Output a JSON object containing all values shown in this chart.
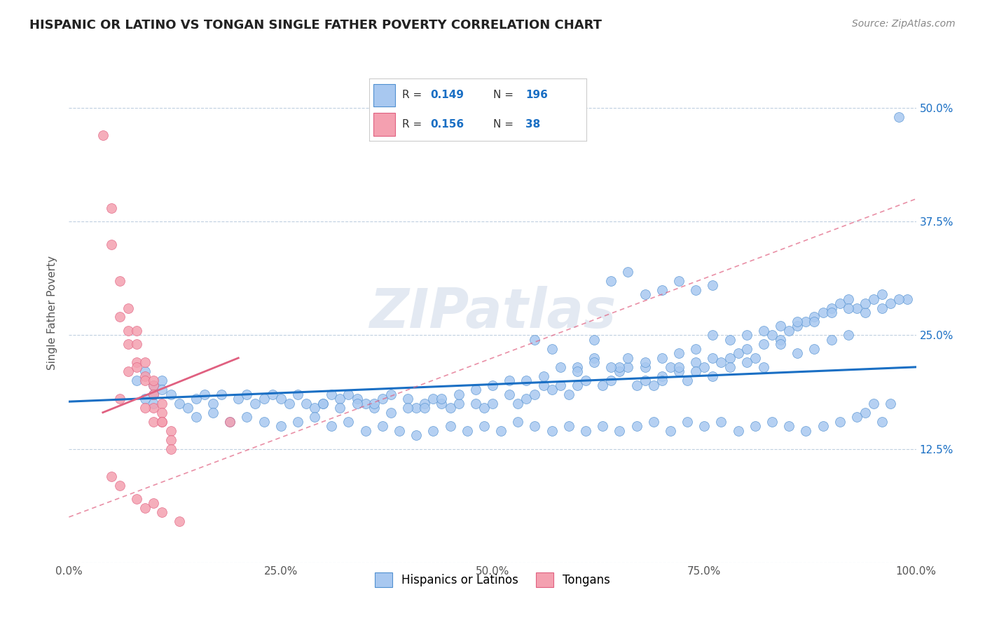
{
  "title": "HISPANIC OR LATINO VS TONGAN SINGLE FATHER POVERTY CORRELATION CHART",
  "source": "Source: ZipAtlas.com",
  "ylabel": "Single Father Poverty",
  "watermark": "ZIPatlas",
  "legend_labels": [
    "Hispanics or Latinos",
    "Tongans"
  ],
  "blue_R": 0.149,
  "blue_N": 196,
  "pink_R": 0.156,
  "pink_N": 38,
  "blue_color": "#a8c8f0",
  "pink_color": "#f4a0b0",
  "blue_edge_color": "#5090d0",
  "pink_edge_color": "#e06080",
  "trendline_color_blue": "#1a6fc4",
  "trendline_color_pink": "#e06080",
  "background_color": "#ffffff",
  "grid_color": "#c0d0e0",
  "xlim": [
    0.0,
    1.0
  ],
  "ylim": [
    0.0,
    0.55
  ],
  "xticks": [
    0.0,
    0.25,
    0.5,
    0.75,
    1.0
  ],
  "xtick_labels": [
    "0.0%",
    "25.0%",
    "50.0%",
    "75.0%",
    "100.0%"
  ],
  "yticks": [
    0.0,
    0.125,
    0.25,
    0.375,
    0.5
  ],
  "ytick_labels_right": [
    "",
    "12.5%",
    "25.0%",
    "37.5%",
    "50.0%"
  ],
  "blue_scatter_x": [
    0.08,
    0.09,
    0.1,
    0.1,
    0.11,
    0.11,
    0.12,
    0.09,
    0.1,
    0.13,
    0.14,
    0.15,
    0.16,
    0.17,
    0.18,
    0.2,
    0.21,
    0.22,
    0.23,
    0.24,
    0.25,
    0.26,
    0.27,
    0.28,
    0.29,
    0.3,
    0.31,
    0.32,
    0.33,
    0.34,
    0.35,
    0.36,
    0.37,
    0.38,
    0.4,
    0.41,
    0.42,
    0.43,
    0.44,
    0.45,
    0.46,
    0.48,
    0.49,
    0.5,
    0.52,
    0.53,
    0.54,
    0.55,
    0.56,
    0.57,
    0.58,
    0.59,
    0.6,
    0.61,
    0.62,
    0.63,
    0.64,
    0.65,
    0.66,
    0.67,
    0.68,
    0.69,
    0.7,
    0.71,
    0.72,
    0.73,
    0.74,
    0.75,
    0.76,
    0.77,
    0.78,
    0.79,
    0.8,
    0.81,
    0.82,
    0.83,
    0.84,
    0.85,
    0.86,
    0.87,
    0.88,
    0.89,
    0.9,
    0.91,
    0.92,
    0.93,
    0.94,
    0.95,
    0.96,
    0.97,
    0.98,
    0.99,
    0.55,
    0.57,
    0.6,
    0.62,
    0.65,
    0.68,
    0.7,
    0.72,
    0.74,
    0.76,
    0.78,
    0.8,
    0.82,
    0.84,
    0.86,
    0.88,
    0.9,
    0.92,
    0.94,
    0.96,
    0.15,
    0.17,
    0.19,
    0.21,
    0.23,
    0.25,
    0.27,
    0.29,
    0.31,
    0.33,
    0.35,
    0.37,
    0.39,
    0.41,
    0.43,
    0.45,
    0.47,
    0.49,
    0.51,
    0.53,
    0.55,
    0.57,
    0.59,
    0.61,
    0.63,
    0.65,
    0.67,
    0.69,
    0.71,
    0.73,
    0.75,
    0.77,
    0.79,
    0.81,
    0.83,
    0.85,
    0.87,
    0.89,
    0.91,
    0.93,
    0.95,
    0.97,
    0.44,
    0.46,
    0.48,
    0.5,
    0.52,
    0.54,
    0.56,
    0.58,
    0.6,
    0.62,
    0.64,
    0.66,
    0.68,
    0.7,
    0.72,
    0.74,
    0.76,
    0.78,
    0.8,
    0.82,
    0.84,
    0.86,
    0.88,
    0.9,
    0.92,
    0.94,
    0.96,
    0.98,
    0.3,
    0.32,
    0.34,
    0.36,
    0.38,
    0.4,
    0.42,
    0.64,
    0.66,
    0.68,
    0.7,
    0.72,
    0.74,
    0.76
  ],
  "blue_scatter_y": [
    0.2,
    0.21,
    0.195,
    0.185,
    0.2,
    0.19,
    0.185,
    0.18,
    0.175,
    0.175,
    0.17,
    0.18,
    0.185,
    0.175,
    0.185,
    0.18,
    0.185,
    0.175,
    0.18,
    0.185,
    0.18,
    0.175,
    0.185,
    0.175,
    0.17,
    0.175,
    0.185,
    0.18,
    0.185,
    0.18,
    0.175,
    0.17,
    0.18,
    0.185,
    0.18,
    0.17,
    0.175,
    0.18,
    0.175,
    0.17,
    0.175,
    0.175,
    0.17,
    0.175,
    0.185,
    0.175,
    0.18,
    0.185,
    0.195,
    0.19,
    0.195,
    0.185,
    0.195,
    0.2,
    0.245,
    0.195,
    0.2,
    0.21,
    0.215,
    0.195,
    0.2,
    0.195,
    0.205,
    0.215,
    0.21,
    0.2,
    0.22,
    0.215,
    0.225,
    0.22,
    0.225,
    0.23,
    0.235,
    0.225,
    0.24,
    0.25,
    0.245,
    0.255,
    0.26,
    0.265,
    0.27,
    0.275,
    0.28,
    0.285,
    0.29,
    0.28,
    0.275,
    0.29,
    0.295,
    0.285,
    0.49,
    0.29,
    0.245,
    0.235,
    0.215,
    0.225,
    0.215,
    0.215,
    0.2,
    0.215,
    0.21,
    0.205,
    0.215,
    0.22,
    0.215,
    0.24,
    0.23,
    0.235,
    0.245,
    0.25,
    0.165,
    0.155,
    0.16,
    0.165,
    0.155,
    0.16,
    0.155,
    0.15,
    0.155,
    0.16,
    0.15,
    0.155,
    0.145,
    0.15,
    0.145,
    0.14,
    0.145,
    0.15,
    0.145,
    0.15,
    0.145,
    0.155,
    0.15,
    0.145,
    0.15,
    0.145,
    0.15,
    0.145,
    0.15,
    0.155,
    0.145,
    0.155,
    0.15,
    0.155,
    0.145,
    0.15,
    0.155,
    0.15,
    0.145,
    0.15,
    0.155,
    0.16,
    0.175,
    0.175,
    0.18,
    0.185,
    0.19,
    0.195,
    0.2,
    0.2,
    0.205,
    0.215,
    0.21,
    0.22,
    0.215,
    0.225,
    0.22,
    0.225,
    0.23,
    0.235,
    0.25,
    0.245,
    0.25,
    0.255,
    0.26,
    0.265,
    0.265,
    0.275,
    0.28,
    0.285,
    0.28,
    0.29,
    0.175,
    0.17,
    0.175,
    0.175,
    0.165,
    0.17,
    0.17,
    0.31,
    0.32,
    0.295,
    0.3,
    0.31,
    0.3,
    0.305
  ],
  "pink_scatter_x": [
    0.04,
    0.05,
    0.05,
    0.06,
    0.06,
    0.07,
    0.07,
    0.07,
    0.08,
    0.08,
    0.08,
    0.09,
    0.09,
    0.09,
    0.1,
    0.1,
    0.1,
    0.1,
    0.11,
    0.11,
    0.11,
    0.12,
    0.12,
    0.12,
    0.06,
    0.07,
    0.08,
    0.09,
    0.1,
    0.11,
    0.05,
    0.06,
    0.08,
    0.09,
    0.1,
    0.11,
    0.13,
    0.19
  ],
  "pink_scatter_y": [
    0.47,
    0.39,
    0.35,
    0.31,
    0.27,
    0.28,
    0.255,
    0.24,
    0.24,
    0.22,
    0.215,
    0.22,
    0.205,
    0.2,
    0.195,
    0.2,
    0.185,
    0.17,
    0.175,
    0.165,
    0.155,
    0.145,
    0.135,
    0.125,
    0.18,
    0.21,
    0.255,
    0.17,
    0.155,
    0.155,
    0.095,
    0.085,
    0.07,
    0.06,
    0.065,
    0.055,
    0.045,
    0.155
  ],
  "blue_trendline_x": [
    0.0,
    1.0
  ],
  "blue_trendline_y": [
    0.177,
    0.215
  ],
  "pink_trendline_x": [
    0.0,
    0.55
  ],
  "pink_trendline_y": [
    0.135,
    0.235
  ]
}
